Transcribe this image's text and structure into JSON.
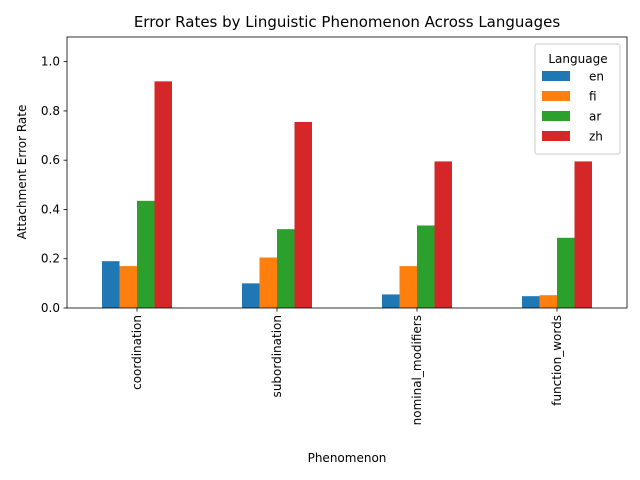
{
  "chart_data": {
    "type": "bar",
    "title": "Error Rates by Linguistic Phenomenon Across Languages",
    "xlabel": "Phenomenon",
    "ylabel": "Attachment Error Rate",
    "categories": [
      "coordination",
      "subordination",
      "nominal_modifiers",
      "function_words"
    ],
    "series": [
      {
        "name": "en",
        "color": "#1f77b4",
        "values": [
          0.19,
          0.1,
          0.055,
          0.048
        ]
      },
      {
        "name": "fi",
        "color": "#ff7f0e",
        "values": [
          0.17,
          0.205,
          0.17,
          0.052
        ]
      },
      {
        "name": "ar",
        "color": "#2ca02c",
        "values": [
          0.435,
          0.32,
          0.335,
          0.285
        ]
      },
      {
        "name": "zh",
        "color": "#d62728",
        "values": [
          0.92,
          0.755,
          0.595,
          0.595
        ]
      }
    ],
    "ylim": [
      0,
      1.1
    ],
    "yticks": [
      "0.0",
      "0.2",
      "0.4",
      "0.6",
      "0.8",
      "1.0"
    ],
    "grid": false,
    "legend": {
      "title": "Language",
      "placement": "top-right"
    }
  }
}
